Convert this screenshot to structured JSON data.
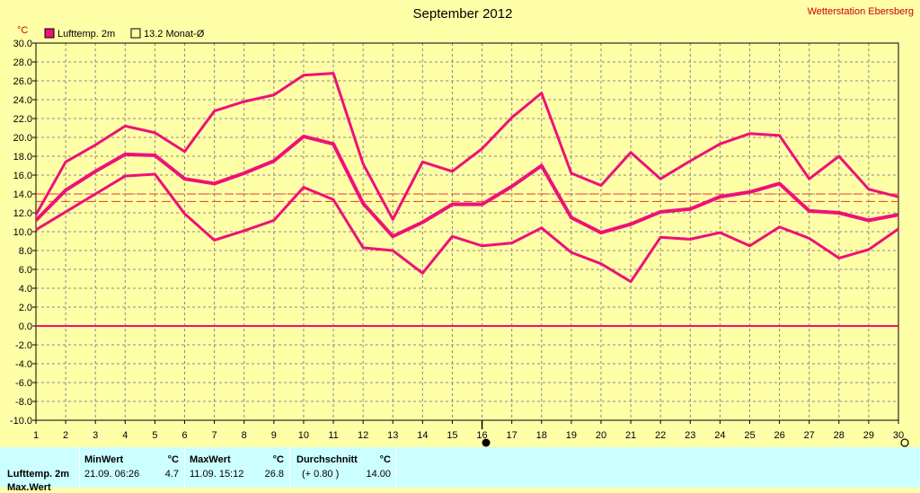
{
  "header": {
    "title": "September 2012",
    "station": "Wetterstation Ebersberg",
    "unit": "°C"
  },
  "legend": {
    "series_label": "Lufttemp. 2m",
    "average_label": "13.2 Monat-Ø"
  },
  "colors": {
    "line": "#ee1177",
    "average_line": "#ee3333",
    "background": "#ffffa8",
    "grid": "#888888",
    "stats_panel": "#ccffff"
  },
  "chart_data": {
    "type": "line",
    "title": "September 2012",
    "ylabel": "°C",
    "x": [
      1,
      2,
      3,
      4,
      5,
      6,
      7,
      8,
      9,
      10,
      11,
      12,
      13,
      14,
      15,
      16,
      17,
      18,
      19,
      20,
      21,
      22,
      23,
      24,
      25,
      26,
      27,
      28,
      29,
      30
    ],
    "ylim": [
      -10,
      30
    ],
    "xlim": [
      1,
      30
    ],
    "grid": true,
    "legend_position": "top-left",
    "series": [
      {
        "name": "Lufttemp. 2m",
        "values": [
          11.2,
          14.4,
          16.4,
          18.2,
          18.1,
          15.6,
          15.1,
          16.2,
          17.5,
          20.1,
          19.3,
          13.0,
          9.5,
          11.0,
          12.9,
          12.9,
          14.8,
          17.0,
          11.5,
          9.9,
          10.8,
          12.1,
          12.4,
          13.7,
          14.2,
          15.1,
          12.2,
          12.0,
          11.2,
          11.8
        ]
      },
      {
        "values": [
          11.8,
          17.4,
          19.2,
          21.2,
          20.5,
          18.5,
          22.8,
          23.8,
          24.5,
          26.6,
          26.8,
          17.2,
          11.3,
          17.4,
          16.4,
          18.8,
          22.1,
          24.7,
          16.2,
          14.9,
          18.4,
          15.6,
          17.5,
          19.3,
          20.4,
          20.2,
          15.6,
          18.0,
          14.5,
          13.7
        ]
      },
      {
        "values": [
          10.2,
          12.1,
          14.0,
          15.9,
          16.1,
          11.9,
          9.1,
          10.1,
          11.2,
          14.7,
          13.4,
          8.3,
          8.0,
          5.6,
          9.5,
          8.5,
          8.8,
          10.4,
          7.8,
          6.6,
          4.7,
          9.4,
          9.2,
          9.9,
          8.5,
          10.5,
          9.3,
          7.2,
          8.1,
          10.3
        ]
      }
    ],
    "reference_lines": [
      13.2,
      14.0
    ],
    "monthly_average": 13.2,
    "yticks": [
      "30.0",
      "28.0",
      "26.0",
      "24.0",
      "22.0",
      "20.0",
      "18.0",
      "16.0",
      "14.0",
      "12.0",
      "10.0",
      "8.0",
      "6.0",
      "4.0",
      "2.0",
      "0.0",
      "-2.0",
      "-4.0",
      "-6.0",
      "-8.0",
      "-10.0"
    ],
    "xticks": [
      "1",
      "2",
      "3",
      "4",
      "5",
      "6",
      "7",
      "8",
      "9",
      "10",
      "11",
      "12",
      "13",
      "14",
      "15",
      "16",
      "17",
      "18",
      "19",
      "20",
      "21",
      "22",
      "23",
      "24",
      "25",
      "26",
      "27",
      "28",
      "29",
      "30"
    ]
  },
  "stats": {
    "row_label": "Lufttemp. 2m",
    "row_label2": "Max.Wert",
    "min_header": "MinWert",
    "max_header": "MaxWert",
    "avg_header": "Durchschnitt",
    "unit": "°C",
    "min_time": "21.09.  06:26",
    "min_value": "4.7",
    "max_time": "11.09.  15:12",
    "max_value": "26.8",
    "avg_delta": "(+ 0.80 )",
    "avg_value": "14.00"
  }
}
